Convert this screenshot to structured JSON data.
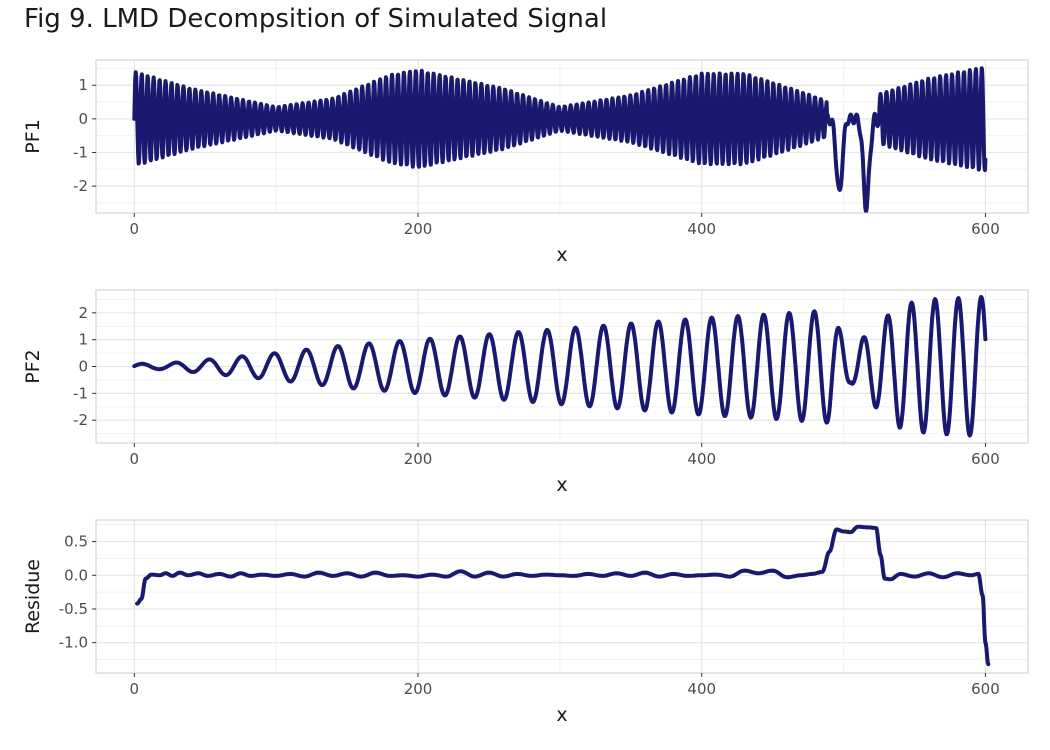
{
  "title": "Fig 9. LMD Decompsition of Simulated Signal",
  "colors": {
    "line": "#191970",
    "panel_border": "#cccccc",
    "grid_major": "#e6e6e6",
    "grid_minor": "#f2f2f2",
    "tick_text": "#4d4d4d",
    "title_text": "#1a1a1a"
  },
  "chart_data": [
    {
      "type": "line",
      "xlabel": "x",
      "ylabel": "PF1",
      "xlim": [
        -27,
        630
      ],
      "ylim": [
        -2.8,
        1.75
      ],
      "xticks": [
        0,
        200,
        400,
        600
      ],
      "yticks": [
        1,
        0,
        -1,
        -2
      ],
      "xtick_labels": [
        "0",
        "200",
        "400",
        "600"
      ],
      "ytick_labels": [
        "1",
        "0",
        "-1",
        "-2"
      ],
      "grid": true,
      "signal": {
        "n": 600,
        "period": 4.2,
        "amplitude_envelope": [
          [
            0,
            1.4
          ],
          [
            40,
            0.9
          ],
          [
            100,
            0.35
          ],
          [
            140,
            0.6
          ],
          [
            180,
            1.3
          ],
          [
            200,
            1.45
          ],
          [
            260,
            0.9
          ],
          [
            300,
            0.35
          ],
          [
            350,
            0.7
          ],
          [
            400,
            1.35
          ],
          [
            430,
            1.35
          ],
          [
            470,
            0.8
          ],
          [
            500,
            0.35
          ],
          [
            530,
            0.8
          ],
          [
            560,
            1.2
          ],
          [
            600,
            1.55
          ]
        ],
        "dips": [
          {
            "x": 497,
            "depth": -2.2
          },
          {
            "x": 516,
            "depth": -2.6
          }
        ]
      }
    },
    {
      "type": "line",
      "xlabel": "x",
      "ylabel": "PF2",
      "xlim": [
        -27,
        630
      ],
      "ylim": [
        -2.85,
        2.85
      ],
      "xticks": [
        0,
        200,
        400,
        600
      ],
      "yticks": [
        2,
        1,
        0,
        -1,
        -2
      ],
      "xtick_labels": [
        "0",
        "200",
        "400",
        "600"
      ],
      "ytick_labels": [
        "2",
        "1",
        "0",
        "-1",
        "-2"
      ],
      "grid": true,
      "signal": {
        "n": 600,
        "amplitude_envelope": [
          [
            0,
            0.1
          ],
          [
            20,
            0.1
          ],
          [
            60,
            0.3
          ],
          [
            100,
            0.5
          ],
          [
            150,
            0.8
          ],
          [
            200,
            1.0
          ],
          [
            250,
            1.2
          ],
          [
            300,
            1.4
          ],
          [
            350,
            1.6
          ],
          [
            400,
            1.8
          ],
          [
            450,
            1.95
          ],
          [
            490,
            2.1
          ],
          [
            505,
            0.6
          ],
          [
            520,
            1.4
          ],
          [
            540,
            2.3
          ],
          [
            560,
            2.5
          ],
          [
            600,
            2.6
          ]
        ],
        "period_start": 24,
        "period_end": 16
      }
    },
    {
      "type": "line",
      "xlabel": "x",
      "ylabel": "Residue",
      "xlim": [
        -27,
        630
      ],
      "ylim": [
        -1.45,
        0.82
      ],
      "xticks": [
        0,
        200,
        400,
        600
      ],
      "yticks": [
        0.5,
        0.0,
        -0.5,
        -1.0
      ],
      "xtick_labels": [
        "0",
        "200",
        "400",
        "600"
      ],
      "ytick_labels": [
        "0.5",
        "0.0",
        "-0.5",
        "-1.0"
      ],
      "grid": true,
      "points": [
        [
          2,
          -0.42
        ],
        [
          5,
          -0.35
        ],
        [
          8,
          -0.05
        ],
        [
          12,
          0.01
        ],
        [
          18,
          0.0
        ],
        [
          22,
          0.03
        ],
        [
          27,
          -0.01
        ],
        [
          32,
          0.04
        ],
        [
          38,
          0.0
        ],
        [
          45,
          0.03
        ],
        [
          52,
          -0.01
        ],
        [
          60,
          0.02
        ],
        [
          68,
          -0.02
        ],
        [
          75,
          0.03
        ],
        [
          82,
          -0.01
        ],
        [
          90,
          0.01
        ],
        [
          100,
          -0.01
        ],
        [
          110,
          0.02
        ],
        [
          120,
          -0.02
        ],
        [
          130,
          0.04
        ],
        [
          140,
          -0.01
        ],
        [
          150,
          0.03
        ],
        [
          160,
          -0.02
        ],
        [
          170,
          0.04
        ],
        [
          180,
          -0.01
        ],
        [
          190,
          0.0
        ],
        [
          200,
          -0.02
        ],
        [
          210,
          0.01
        ],
        [
          220,
          -0.02
        ],
        [
          230,
          0.06
        ],
        [
          240,
          -0.02
        ],
        [
          250,
          0.04
        ],
        [
          260,
          -0.02
        ],
        [
          270,
          0.02
        ],
        [
          280,
          -0.01
        ],
        [
          290,
          0.01
        ],
        [
          300,
          0.0
        ],
        [
          310,
          -0.01
        ],
        [
          320,
          0.02
        ],
        [
          330,
          -0.01
        ],
        [
          340,
          0.03
        ],
        [
          350,
          -0.01
        ],
        [
          360,
          0.04
        ],
        [
          370,
          -0.02
        ],
        [
          380,
          0.02
        ],
        [
          390,
          -0.01
        ],
        [
          400,
          0.0
        ],
        [
          410,
          0.01
        ],
        [
          420,
          -0.02
        ],
        [
          430,
          0.07
        ],
        [
          440,
          0.03
        ],
        [
          450,
          0.07
        ],
        [
          460,
          -0.03
        ],
        [
          470,
          0.0
        ],
        [
          478,
          0.02
        ],
        [
          485,
          0.05
        ],
        [
          490,
          0.35
        ],
        [
          495,
          0.68
        ],
        [
          500,
          0.65
        ],
        [
          505,
          0.64
        ],
        [
          510,
          0.72
        ],
        [
          518,
          0.71
        ],
        [
          523,
          0.7
        ],
        [
          526,
          0.3
        ],
        [
          529,
          -0.05
        ],
        [
          533,
          -0.06
        ],
        [
          540,
          0.02
        ],
        [
          550,
          -0.02
        ],
        [
          560,
          0.03
        ],
        [
          570,
          -0.03
        ],
        [
          580,
          0.03
        ],
        [
          590,
          0.0
        ],
        [
          595,
          0.02
        ],
        [
          598,
          -0.3
        ],
        [
          600,
          -1.0
        ],
        [
          602,
          -1.32
        ]
      ]
    }
  ]
}
